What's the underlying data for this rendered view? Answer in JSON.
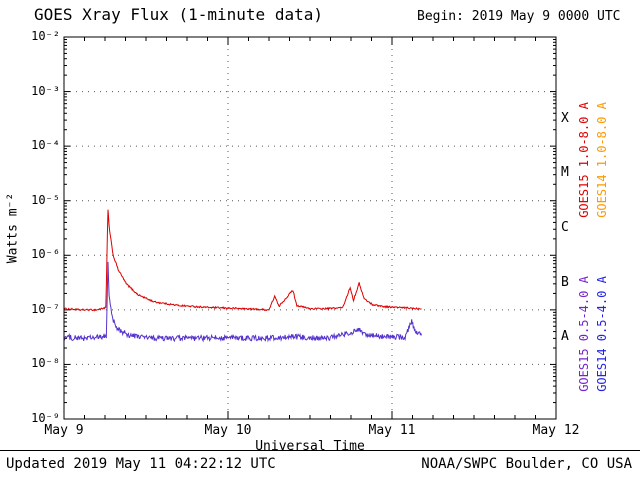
{
  "header": {
    "begin": "Begin: 2019 May 9 0000 UTC"
  },
  "footer": {
    "updated": "Updated 2019 May 11 04:22:12 UTC",
    "source": "NOAA/SWPC Boulder, CO USA"
  },
  "chart_data": {
    "type": "line",
    "title": "GOES Xray Flux (1-minute data)",
    "xlabel": "Universal Time",
    "ylabel": "Watts m⁻²",
    "x_range_days": [
      0,
      3
    ],
    "x_tick_labels": [
      "May 9",
      "May 10",
      "May 11",
      "May 12"
    ],
    "y_log_range": [
      -9,
      -2
    ],
    "y_tick_labels": [
      "10⁻²",
      "10⁻³",
      "10⁻⁴",
      "10⁻⁵",
      "10⁻⁶",
      "10⁻⁷",
      "10⁻⁸",
      "10⁻⁹"
    ],
    "flare_classes": [
      "X",
      "M",
      "C",
      "B",
      "A"
    ],
    "grid": {
      "horizontal_decades": true,
      "vertical_days": true
    },
    "legend_position": "right-rotated",
    "legend": [
      {
        "label": "GOES15 1.0-8.0 A",
        "color": "#dd0000"
      },
      {
        "label": "GOES14 1.0-8.0 A",
        "color": "#ff9900"
      },
      {
        "label": "GOES15 0.5-4.0 A",
        "color": "#7722cc"
      },
      {
        "label": "GOES14 0.5-4.0 A",
        "color": "#2222ee"
      }
    ],
    "series": [
      {
        "name": "GOES15 1.0-8.0 A",
        "color": "#dd0000",
        "noise_log10": 0.015,
        "points": [
          [
            0.0,
            1.05e-07
          ],
          [
            0.1,
            1e-07
          ],
          [
            0.2,
            1e-07
          ],
          [
            0.255,
            1.1e-07
          ],
          [
            0.268,
            6.8e-06
          ],
          [
            0.278,
            2.8e-06
          ],
          [
            0.3,
            1e-06
          ],
          [
            0.33,
            5.5e-07
          ],
          [
            0.38,
            3e-07
          ],
          [
            0.45,
            1.9e-07
          ],
          [
            0.55,
            1.4e-07
          ],
          [
            0.7,
            1.2e-07
          ],
          [
            0.9,
            1.1e-07
          ],
          [
            1.1,
            1.05e-07
          ],
          [
            1.25,
            1e-07
          ],
          [
            1.285,
            1.8e-07
          ],
          [
            1.31,
            1.15e-07
          ],
          [
            1.395,
            2.3e-07
          ],
          [
            1.42,
            1.2e-07
          ],
          [
            1.5,
            1.05e-07
          ],
          [
            1.6,
            1.05e-07
          ],
          [
            1.7,
            1.1e-07
          ],
          [
            1.745,
            2.6e-07
          ],
          [
            1.765,
            1.5e-07
          ],
          [
            1.8,
            3.1e-07
          ],
          [
            1.83,
            1.6e-07
          ],
          [
            1.88,
            1.25e-07
          ],
          [
            1.95,
            1.15e-07
          ],
          [
            2.05,
            1.1e-07
          ],
          [
            2.18,
            1.05e-07
          ]
        ]
      },
      {
        "name": "GOES15 0.5-4.0 A",
        "color": "#5533cc",
        "noise_log10": 0.05,
        "points": [
          [
            0.0,
            3.2e-08
          ],
          [
            0.1,
            3e-08
          ],
          [
            0.2,
            3.1e-08
          ],
          [
            0.258,
            3.2e-08
          ],
          [
            0.268,
            7.5e-07
          ],
          [
            0.275,
            2e-07
          ],
          [
            0.29,
            8e-08
          ],
          [
            0.32,
            4.5e-08
          ],
          [
            0.4,
            3.4e-08
          ],
          [
            0.55,
            3e-08
          ],
          [
            0.8,
            3e-08
          ],
          [
            1.0,
            3.1e-08
          ],
          [
            1.2,
            3e-08
          ],
          [
            1.4,
            3.2e-08
          ],
          [
            1.6,
            3e-08
          ],
          [
            1.745,
            3.8e-08
          ],
          [
            1.8,
            4.2e-08
          ],
          [
            1.85,
            3.4e-08
          ],
          [
            2.0,
            3.2e-08
          ],
          [
            2.08,
            3.1e-08
          ],
          [
            2.12,
            6.5e-08
          ],
          [
            2.14,
            4e-08
          ],
          [
            2.18,
            3.4e-08
          ]
        ]
      }
    ]
  }
}
